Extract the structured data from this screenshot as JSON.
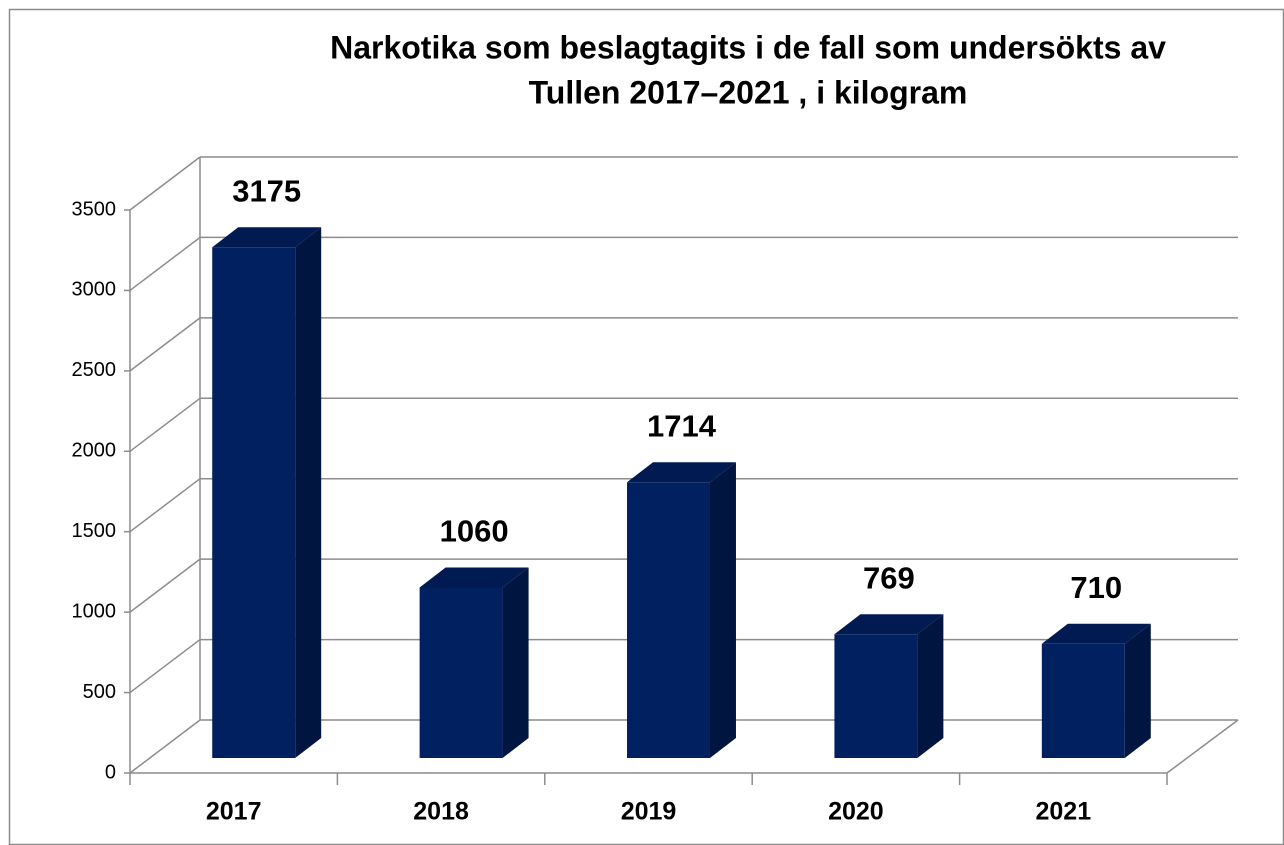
{
  "chart_data": {
    "type": "bar3d",
    "title": [
      "Narkotika som beslagtagits i de fall som undersökts av",
      "Tullen 2017–2021 , i kilogram"
    ],
    "categories": [
      "2017",
      "2018",
      "2019",
      "2020",
      "2021"
    ],
    "values": [
      3175,
      1060,
      1714,
      769,
      710
    ],
    "color": "#012060",
    "ylim": [
      0,
      3500
    ],
    "yticks": [
      0,
      500,
      1000,
      1500,
      2000,
      2500,
      3000,
      3500
    ],
    "grid": true
  }
}
